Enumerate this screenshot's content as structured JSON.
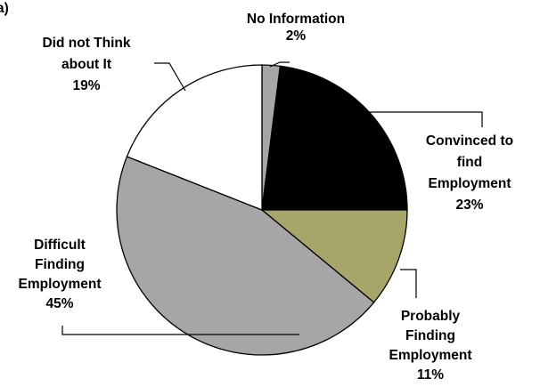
{
  "panel_label": "a)",
  "chart_data": {
    "type": "pie",
    "start_angle_deg": 0,
    "direction": "clockwise",
    "slices": [
      {
        "name": "No Information",
        "value": 2,
        "label_lines": [
          "No Information"
        ],
        "value_label": "2%",
        "color": "#A6A6A6"
      },
      {
        "name": "Convinced to find Employment",
        "value": 23,
        "label_lines": [
          "Convinced to",
          "find",
          "Employment"
        ],
        "value_label": "23%",
        "color": "#000000"
      },
      {
        "name": "Probably Finding Employment",
        "value": 11,
        "label_lines": [
          "Probably",
          "Finding",
          "Employment"
        ],
        "value_label": "11%",
        "color": "#A6A66A"
      },
      {
        "name": "Difficult Finding Employment",
        "value": 45,
        "label_lines": [
          "Difficult",
          "Finding",
          "Employment"
        ],
        "value_label": "45%",
        "color": "#A6A6A6"
      },
      {
        "name": "Did not Think about It",
        "value": 19,
        "label_lines": [
          "Did not Think",
          "about It"
        ],
        "value_label": "19%",
        "color": "#FFFFFF"
      }
    ]
  }
}
